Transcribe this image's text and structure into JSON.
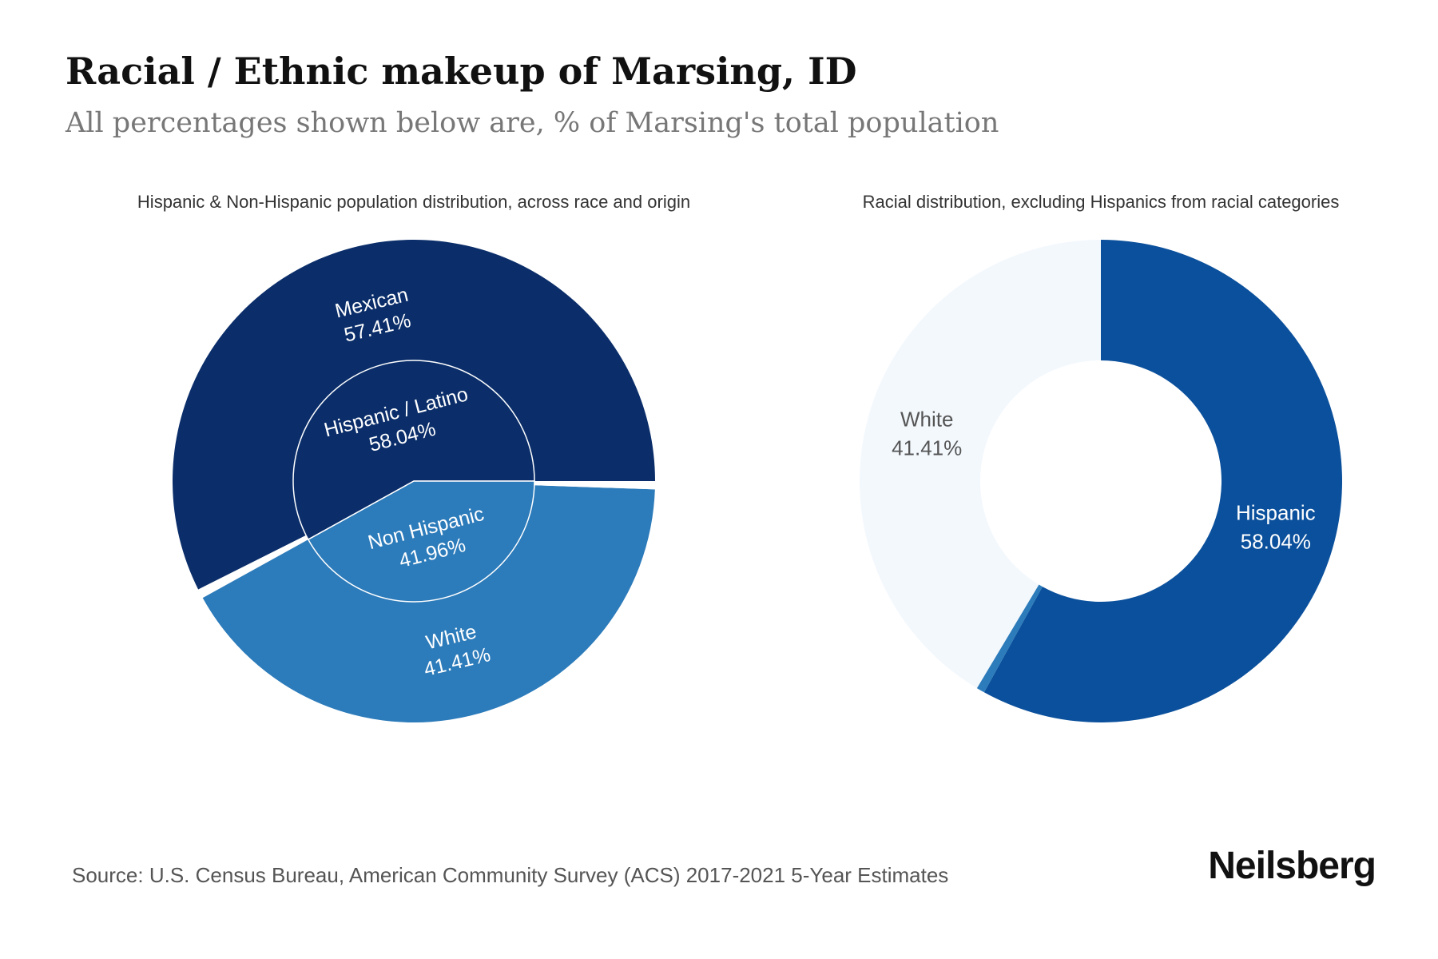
{
  "header": {
    "title": "Racial / Ethnic makeup of Marsing, ID",
    "subtitle": "All percentages shown below are, % of Marsing's total population"
  },
  "footer": {
    "source": "Source: U.S. Census Bureau, American Community Survey (ACS) 2017-2021 5-Year Estimates",
    "brand": "Neilsberg"
  },
  "chart_data": [
    {
      "type": "pie",
      "title": "Hispanic & Non-Hispanic population distribution, across race and origin",
      "inner": [
        {
          "label": "Hispanic / Latino",
          "value": 58.04,
          "display": "58.04%",
          "color": "#0b2e6a"
        },
        {
          "label": "Non Hispanic",
          "value": 41.96,
          "display": "41.96%",
          "color": "#2c7bba"
        }
      ],
      "outer": [
        {
          "label": "Mexican",
          "value": 57.41,
          "display": "57.41%",
          "color": "#0b2e6a"
        },
        {
          "label": "",
          "value": 0.63,
          "display": "",
          "color": "#ffffff"
        },
        {
          "label": "White",
          "value": 41.41,
          "display": "41.41%",
          "color": "#2c7bba"
        },
        {
          "label": "",
          "value": 0.55,
          "display": "",
          "color": "#ffffff"
        }
      ]
    },
    {
      "type": "pie",
      "title": "Racial distribution, excluding Hispanics from racial categories",
      "slices": [
        {
          "label": "Hispanic",
          "value": 58.04,
          "display": "58.04%",
          "color": "#0b509c"
        },
        {
          "label": "",
          "value": 0.55,
          "display": "",
          "color": "#2c7bba"
        },
        {
          "label": "White",
          "value": 41.41,
          "display": "41.41%",
          "color": "#f3f8fd"
        }
      ]
    }
  ]
}
